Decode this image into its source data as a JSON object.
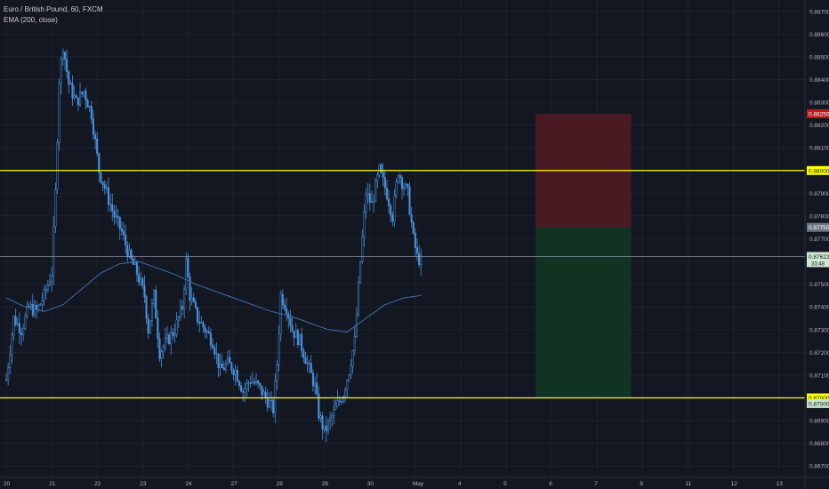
{
  "legend": {
    "title": "Euro / British Pound, 60, FXCM",
    "indicator": "EMA (200, close)"
  },
  "colors": {
    "background": "#131722",
    "grid": "#1e222d",
    "axis_text": "#b2b5be",
    "candle": "#4a90d9",
    "ema": "#3f6faa",
    "hline": "#ffff00",
    "price_line": "#9aa4b2",
    "stop_zone": "#4a1a22",
    "target_zone": "#113321",
    "stop_tag": "#b71c1c",
    "current_tag": "#cfe8cf",
    "entry_tag": "#6d7585",
    "hline_tag": "#ffff00",
    "target_tag": "#c8e6c9"
  },
  "chart_data": {
    "type": "candlestick",
    "symbol": "Euro / British Pound",
    "timeframe": "60",
    "source": "FXCM",
    "y_axis": {
      "range": [
        0.8665,
        0.8875
      ],
      "ticks": [
        "0.88700",
        "0.88600",
        "0.88500",
        "0.88400",
        "0.88300",
        "0.88200",
        "0.88100",
        "0.88000",
        "0.87900",
        "0.87800",
        "0.87700",
        "0.87600",
        "0.87500",
        "0.87400",
        "0.87300",
        "0.87200",
        "0.87100",
        "0.87000",
        "0.86900",
        "0.86800",
        "0.86700"
      ],
      "tick_values": [
        0.887,
        0.886,
        0.885,
        0.884,
        0.883,
        0.882,
        0.881,
        0.88,
        0.879,
        0.878,
        0.877,
        0.876,
        0.875,
        0.874,
        0.873,
        0.872,
        0.871,
        0.87,
        0.869,
        0.868,
        0.867
      ]
    },
    "x_axis": {
      "labels": [
        "20",
        "21",
        "22",
        "23",
        "24",
        "27",
        "28",
        "29",
        "30",
        "May",
        "4",
        "5",
        "6",
        "7",
        "8",
        "11",
        "12",
        "13"
      ],
      "label_index": [
        0,
        1,
        2,
        3,
        4,
        5,
        6,
        7,
        8,
        9,
        10,
        11,
        12,
        13,
        14,
        15,
        16,
        17
      ]
    },
    "price_path_hourly": [
      [
        0,
        0.8708
      ],
      [
        4,
        0.8735
      ],
      [
        8,
        0.873
      ],
      [
        12,
        0.874
      ],
      [
        16,
        0.8738
      ],
      [
        20,
        0.8745
      ],
      [
        24,
        0.8755
      ],
      [
        26,
        0.879
      ],
      [
        28,
        0.884
      ],
      [
        30,
        0.8855
      ],
      [
        33,
        0.8838
      ],
      [
        37,
        0.883
      ],
      [
        41,
        0.8835
      ],
      [
        45,
        0.8825
      ],
      [
        49,
        0.88
      ],
      [
        53,
        0.879
      ],
      [
        57,
        0.878
      ],
      [
        61,
        0.8773
      ],
      [
        65,
        0.8762
      ],
      [
        69,
        0.8755
      ],
      [
        73,
        0.8745
      ],
      [
        75,
        0.873
      ],
      [
        78,
        0.8745
      ],
      [
        81,
        0.872
      ],
      [
        85,
        0.8725
      ],
      [
        89,
        0.873
      ],
      [
        93,
        0.874
      ],
      [
        95,
        0.876
      ],
      [
        97,
        0.8745
      ],
      [
        101,
        0.8735
      ],
      [
        105,
        0.873
      ],
      [
        109,
        0.8725
      ],
      [
        113,
        0.8712
      ],
      [
        117,
        0.8715
      ],
      [
        121,
        0.8712
      ],
      [
        125,
        0.8703
      ],
      [
        129,
        0.8708
      ],
      [
        133,
        0.8705
      ],
      [
        137,
        0.87
      ],
      [
        141,
        0.8695
      ],
      [
        143,
        0.8715
      ],
      [
        145,
        0.8745
      ],
      [
        148,
        0.874
      ],
      [
        151,
        0.873
      ],
      [
        155,
        0.8725
      ],
      [
        159,
        0.8715
      ],
      [
        163,
        0.8705
      ],
      [
        165,
        0.8693
      ],
      [
        168,
        0.8685
      ],
      [
        171,
        0.869
      ],
      [
        175,
        0.8697
      ],
      [
        178,
        0.8702
      ],
      [
        181,
        0.8712
      ],
      [
        184,
        0.8725
      ],
      [
        187,
        0.876
      ],
      [
        190,
        0.879
      ],
      [
        193,
        0.8785
      ],
      [
        197,
        0.88
      ],
      [
        201,
        0.879
      ],
      [
        204,
        0.878
      ],
      [
        207,
        0.88
      ],
      [
        209,
        0.8795
      ],
      [
        212,
        0.879
      ],
      [
        215,
        0.877
      ],
      [
        217,
        0.8762
      ],
      [
        219,
        0.876
      ]
    ],
    "ema_200": [
      [
        0,
        0.8744
      ],
      [
        10,
        0.874
      ],
      [
        20,
        0.8738
      ],
      [
        30,
        0.8741
      ],
      [
        40,
        0.8748
      ],
      [
        50,
        0.8755
      ],
      [
        60,
        0.8759
      ],
      [
        70,
        0.876
      ],
      [
        80,
        0.8757
      ],
      [
        90,
        0.8754
      ],
      [
        100,
        0.875
      ],
      [
        110,
        0.8747
      ],
      [
        120,
        0.8744
      ],
      [
        130,
        0.8741
      ],
      [
        140,
        0.8738
      ],
      [
        150,
        0.8736
      ],
      [
        160,
        0.8733
      ],
      [
        170,
        0.873
      ],
      [
        180,
        0.8729
      ],
      [
        190,
        0.8735
      ],
      [
        200,
        0.8741
      ],
      [
        210,
        0.8744
      ],
      [
        219,
        0.8745
      ]
    ],
    "annotations": {
      "horizontal_lines": [
        {
          "price": 0.88,
          "label": "0.88000"
        },
        {
          "price": 0.87,
          "label": "0.87000"
        }
      ],
      "price_tags": {
        "stop": {
          "price": 0.8825,
          "label": "0.88250"
        },
        "entry": {
          "price": 0.8775,
          "label": "0.87750"
        },
        "current": {
          "price": 0.87622,
          "label": "0.87622",
          "countdown": "33:48"
        },
        "target": {
          "price": 0.87,
          "label": "0.87000"
        }
      },
      "short_position": {
        "stop": 0.8825,
        "entry": 0.8775,
        "target": 0.87,
        "x_start_index": 11.65,
        "x_end_index": 13.75
      }
    }
  }
}
